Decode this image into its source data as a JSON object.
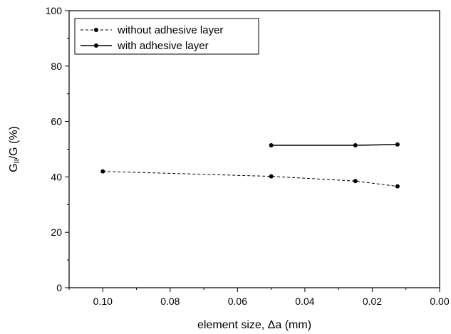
{
  "chart_data": {
    "type": "line",
    "xlabel": "element size, Δa (mm)",
    "ylabel": {
      "main": "G",
      "sub": "II",
      "rest": "/G (%)"
    },
    "xlim": [
      0.11,
      0.0
    ],
    "ylim": [
      0,
      100
    ],
    "x_reversed": true,
    "x_ticks": [
      "0.10",
      "0.08",
      "0.06",
      "0.04",
      "0.02",
      "0.00"
    ],
    "y_ticks": [
      "0",
      "20",
      "40",
      "60",
      "80",
      "100"
    ],
    "grid": false,
    "legend": {
      "placement": "top-left"
    },
    "series": [
      {
        "name": "without adhesive layer",
        "style": "dashed",
        "color": "#000000",
        "x": [
          0.1,
          0.05,
          0.025,
          0.0125
        ],
        "y": [
          42.0,
          40.2,
          38.5,
          36.6
        ]
      },
      {
        "name": "with adhesive layer",
        "style": "solid",
        "color": "#000000",
        "x": [
          0.05,
          0.025,
          0.0125
        ],
        "y": [
          51.4,
          51.4,
          51.7
        ]
      }
    ]
  }
}
